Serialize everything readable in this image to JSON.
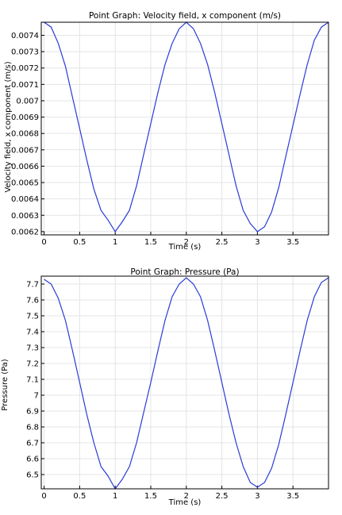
{
  "chart_data": [
    {
      "type": "line",
      "title": "Point Graph: Velocity field, x component (m/s)",
      "xlabel": "Time (s)",
      "ylabel": "Velocity field, x component (m/s)",
      "xlim": [
        -0.04,
        4.0
      ],
      "ylim": [
        0.00618,
        0.00748
      ],
      "grid": true,
      "x_ticks": [
        "0",
        "0.5",
        "1",
        "1.5",
        "2",
        "2.5",
        "3",
        "3.5"
      ],
      "y_ticks": [
        "0.0062",
        "0.0063",
        "0.0064",
        "0.0065",
        "0.0066",
        "0.0067",
        "0.0068",
        "0.0069",
        "0.007",
        "0.0071",
        "0.0072",
        "0.0073",
        "0.0074"
      ],
      "series": [
        {
          "x": [
            0,
            0.1,
            0.2,
            0.3,
            0.4,
            0.5,
            0.6,
            0.7,
            0.8,
            0.9,
            1.0,
            1.1,
            1.2,
            1.3,
            1.4,
            1.5,
            1.6,
            1.7,
            1.8,
            1.9,
            2.0,
            2.1,
            2.2,
            2.3,
            2.4,
            2.5,
            2.6,
            2.7,
            2.8,
            2.9,
            3.0,
            3.1,
            3.2,
            3.3,
            3.4,
            3.5,
            3.6,
            3.7,
            3.8,
            3.9,
            4.0
          ],
          "y": [
            0.00748,
            0.00745,
            0.00735,
            0.00721,
            0.00702,
            0.00683,
            0.00664,
            0.00646,
            0.00633,
            0.00627,
            0.0062,
            0.00626,
            0.00633,
            0.00648,
            0.00667,
            0.00686,
            0.00705,
            0.00722,
            0.00735,
            0.00744,
            0.00748,
            0.00744,
            0.00735,
            0.00722,
            0.00705,
            0.00686,
            0.00667,
            0.00648,
            0.00633,
            0.00625,
            0.0062,
            0.00623,
            0.00632,
            0.00647,
            0.00666,
            0.00685,
            0.00704,
            0.00722,
            0.00737,
            0.00745,
            0.00748
          ]
        }
      ]
    },
    {
      "type": "line",
      "title": "Point Graph: Pressure (Pa)",
      "xlabel": "Time (s)",
      "ylabel": "Pressure (Pa)",
      "xlim": [
        -0.04,
        4.0
      ],
      "ylim": [
        6.41,
        7.75
      ],
      "grid": true,
      "x_ticks": [
        "0",
        "0.5",
        "1",
        "1.5",
        "2",
        "2.5",
        "3",
        "3.5"
      ],
      "y_ticks": [
        "6.5",
        "6.6",
        "6.7",
        "6.8",
        "6.9",
        "7",
        "7.1",
        "7.2",
        "7.3",
        "7.4",
        "7.5",
        "7.6",
        "7.7"
      ],
      "series": [
        {
          "x": [
            0,
            0.1,
            0.2,
            0.3,
            0.4,
            0.5,
            0.6,
            0.7,
            0.8,
            0.9,
            1.0,
            1.1,
            1.2,
            1.3,
            1.4,
            1.5,
            1.6,
            1.7,
            1.8,
            1.9,
            2.0,
            2.1,
            2.2,
            2.3,
            2.4,
            2.5,
            2.6,
            2.7,
            2.8,
            2.9,
            3.0,
            3.1,
            3.2,
            3.3,
            3.4,
            3.5,
            3.6,
            3.7,
            3.8,
            3.9,
            4.0
          ],
          "y": [
            7.73,
            7.7,
            7.61,
            7.47,
            7.28,
            7.08,
            6.88,
            6.7,
            6.55,
            6.49,
            6.41,
            6.47,
            6.55,
            6.7,
            6.89,
            7.08,
            7.28,
            7.47,
            7.62,
            7.7,
            7.74,
            7.7,
            7.62,
            7.47,
            7.28,
            7.08,
            6.88,
            6.7,
            6.55,
            6.45,
            6.42,
            6.45,
            6.54,
            6.69,
            6.88,
            7.08,
            7.28,
            7.47,
            7.62,
            7.71,
            7.74
          ]
        }
      ]
    }
  ],
  "colors": {
    "series": "#2a3bd6",
    "grid": "#e4e4e4",
    "frame": "#000000"
  }
}
